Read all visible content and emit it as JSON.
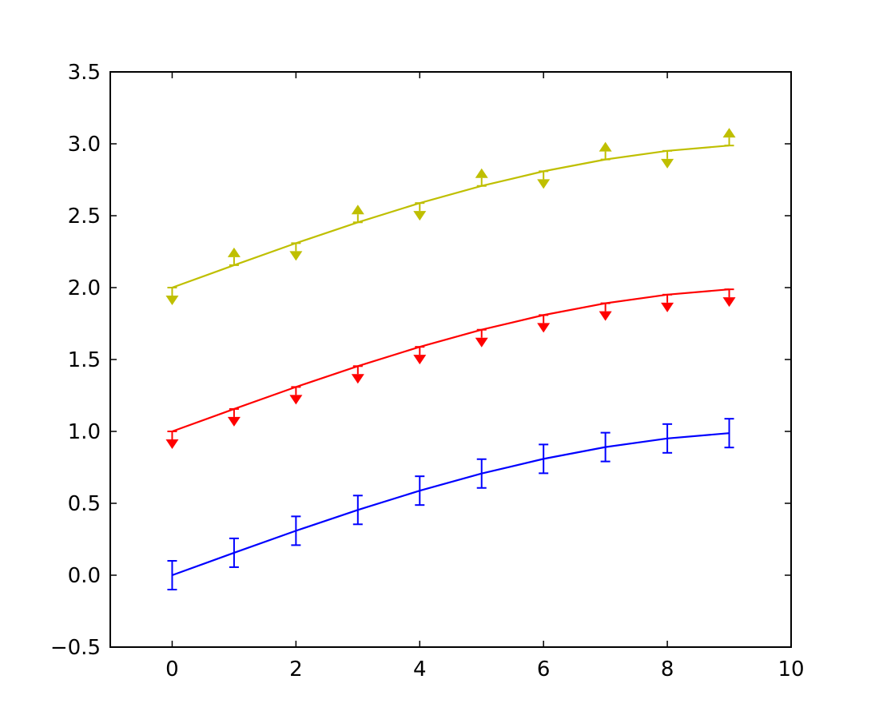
{
  "chart_data": {
    "type": "line",
    "title": "",
    "xlabel": "",
    "ylabel": "",
    "xlim": [
      -1,
      10
    ],
    "ylim": [
      -0.5,
      3.5
    ],
    "x_ticks": [
      0,
      2,
      4,
      6,
      8,
      10
    ],
    "x_tick_labels": [
      "0",
      "2",
      "4",
      "6",
      "8",
      "10"
    ],
    "y_ticks": [
      -0.5,
      0.0,
      0.5,
      1.0,
      1.5,
      2.0,
      2.5,
      3.0,
      3.5
    ],
    "y_tick_labels": [
      "−0.5",
      "0.0",
      "0.5",
      "1.0",
      "1.5",
      "2.0",
      "2.5",
      "3.0",
      "3.5"
    ],
    "grid": false,
    "legend": false,
    "x": [
      0,
      1,
      2,
      3,
      4,
      5,
      6,
      7,
      8,
      9
    ],
    "series": [
      {
        "color": "#0000ff",
        "values": [
          0.0,
          0.156,
          0.309,
          0.454,
          0.588,
          0.707,
          0.809,
          0.891,
          0.951,
          0.988
        ],
        "error": 0.1,
        "marker_style": "errorbar"
      },
      {
        "color": "#ff0000",
        "values": [
          1.0,
          1.156,
          1.309,
          1.454,
          1.588,
          1.707,
          1.809,
          1.891,
          1.951,
          1.988
        ],
        "error": 0.1,
        "marker_style": "upper-limit-arrows",
        "marker_directions": [
          "down",
          "down",
          "down",
          "down",
          "down",
          "down",
          "down",
          "down",
          "down",
          "down"
        ]
      },
      {
        "color": "#bfbf00",
        "values": [
          2.0,
          2.156,
          2.309,
          2.454,
          2.588,
          2.707,
          2.809,
          2.891,
          2.951,
          2.988
        ],
        "error": 0.1,
        "marker_style": "alternating-limit-arrows",
        "marker_directions": [
          "down",
          "up",
          "down",
          "up",
          "down",
          "up",
          "down",
          "up",
          "down",
          "up"
        ]
      }
    ]
  }
}
